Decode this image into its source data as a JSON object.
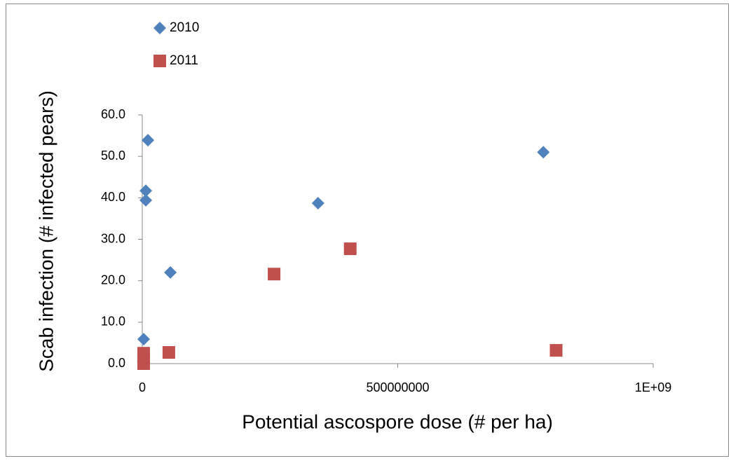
{
  "chart_data": {
    "type": "scatter",
    "xlabel": "Potential ascospore dose (# per ha)",
    "ylabel": "Scab infection (# infected pears)",
    "xlim": [
      0,
      1000000000
    ],
    "xticks": [
      0,
      500000000,
      {
        "value": 1000000000,
        "label": "1E+09"
      }
    ],
    "ylim": [
      0,
      60
    ],
    "yticks": [
      {
        "value": 0,
        "label": "0.0"
      },
      {
        "value": 10,
        "label": "10.0"
      },
      {
        "value": 20,
        "label": "20.0"
      },
      {
        "value": 30,
        "label": "30.0"
      },
      {
        "value": 40,
        "label": "40.0"
      },
      {
        "value": 50,
        "label": "50.0"
      },
      {
        "value": 60,
        "label": "60.0"
      }
    ],
    "series": [
      {
        "name": "2010",
        "color": "#4f81bd",
        "marker": "diamond",
        "x": [
          11000000,
          6900000,
          6900000,
          55000000,
          2700000,
          344000000,
          785000000,
          2000000
        ],
        "values": [
          53.9,
          41.7,
          39.4,
          22.0,
          5.9,
          38.7,
          51.0,
          0.5
        ]
      },
      {
        "name": "2011",
        "color": "#c0504d",
        "marker": "square",
        "x": [
          2700000,
          2700000,
          52000000,
          258000000,
          407000000,
          810000000,
          2700000
        ],
        "values": [
          2.5,
          0,
          2.7,
          21.6,
          27.7,
          3.2,
          1.2
        ]
      }
    ]
  }
}
